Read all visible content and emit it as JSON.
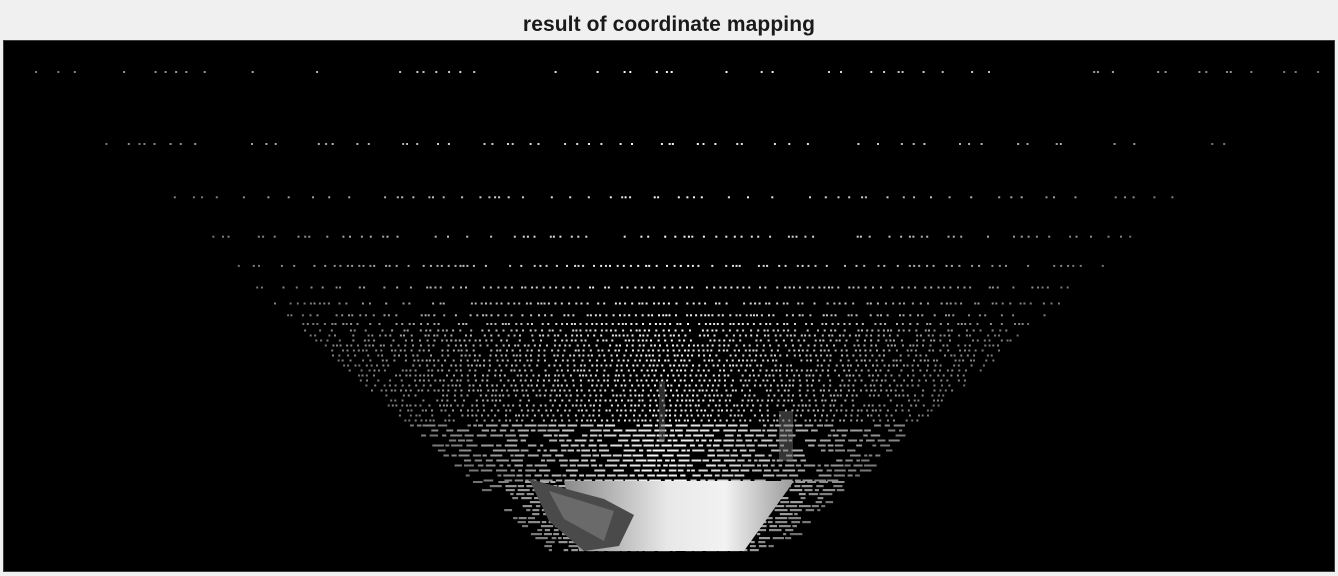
{
  "figure": {
    "title": "result of coordinate mapping"
  },
  "colors": {
    "figure_background": "#f0f0f0",
    "axes_background": "#000000",
    "title_text": "#1a1a1a"
  }
}
